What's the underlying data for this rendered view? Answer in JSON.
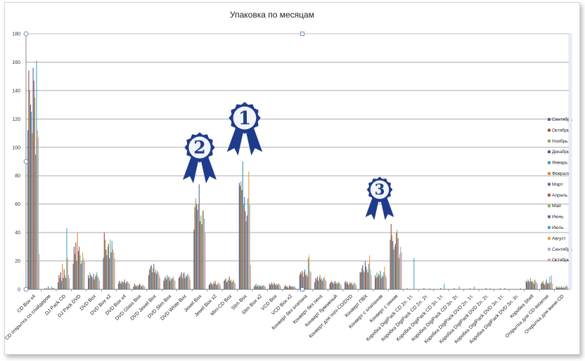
{
  "chart_data": {
    "type": "bar",
    "title": "Упаковка по месяцам",
    "xlabel": "",
    "ylabel": "",
    "ylim": [
      0,
      180
    ],
    "yticks": [
      0,
      20,
      40,
      60,
      80,
      100,
      120,
      140,
      160,
      180
    ],
    "grid": true,
    "legend_position": "right",
    "categories": [
      "CD Box x4",
      "CD открытка со спайдером",
      "DJ Pack CD",
      "DJ Pack DVD",
      "DVD Box",
      "DVD Box x2",
      "DVD Box x4",
      "DVD Glass Box",
      "DVD Jewel Box",
      "DVD Slim Box",
      "DVD White Box",
      "Jewel Box",
      "Jewel Box x2",
      "Mini-CD Box",
      "Slim Box",
      "Slim Box x2",
      "VCD Box",
      "VCD Box x2",
      "Конверт без клапана",
      "Конверт без окна",
      "Конверт бумажный",
      "Конверт для mini-CD/DVD",
      "Конверт ПВХ",
      "Конверт с клапаном",
      "Конверт с окном",
      "Коробка DigiPack CD 2л. 1т.",
      "Коробка DigiPack CD 2л. 2т.",
      "Коробка DigiPack CD 3л. 1т.",
      "Коробка DigiPack CD 3л. 3т.",
      "Коробка DigiPack DVD 2л. 1т.",
      "Коробка DigiPack DVD 2л. 2т.",
      "Коробка DigiPack DVD 3л. 1т.",
      "Коробка DigiPack DVD 3л. 3т.",
      "Коробка Shell",
      "Открытка для CD-визитки",
      "Открытка для мини-CD"
    ],
    "series": [
      {
        "name": "Сентябрь",
        "color": "#4a6a9a",
        "values": [
          112,
          0,
          5,
          18,
          10,
          22,
          4,
          2,
          10,
          6,
          8,
          42,
          3,
          6,
          75,
          2,
          4,
          2,
          10,
          5,
          4,
          5,
          12,
          10,
          35,
          0,
          0,
          0,
          0,
          0,
          0,
          0,
          0,
          6,
          4,
          2
        ]
      },
      {
        "name": "Октябрь",
        "color": "#a84a42",
        "values": [
          154,
          0,
          10,
          30,
          8,
          40,
          6,
          4,
          14,
          8,
          9,
          58,
          4,
          7,
          73,
          3,
          3,
          3,
          12,
          8,
          5,
          6,
          12,
          8,
          46,
          0,
          0,
          0,
          0,
          0,
          0,
          0,
          0,
          5,
          5,
          1
        ]
      },
      {
        "name": "Ноябрь",
        "color": "#8aa05a",
        "values": [
          140,
          1,
          8,
          25,
          12,
          35,
          5,
          3,
          16,
          9,
          10,
          64,
          5,
          8,
          76,
          4,
          5,
          2,
          11,
          7,
          6,
          4,
          15,
          12,
          38,
          1,
          0,
          0,
          0,
          0,
          0,
          0,
          0,
          7,
          6,
          2
        ]
      },
      {
        "name": "Декабрь",
        "color": "#6a5090",
        "values": [
          130,
          0,
          12,
          33,
          10,
          28,
          4,
          2,
          17,
          7,
          12,
          60,
          4,
          5,
          70,
          2,
          4,
          2,
          13,
          9,
          5,
          5,
          17,
          9,
          34,
          0,
          0,
          0,
          0,
          0,
          0,
          0,
          0,
          6,
          4,
          1
        ]
      },
      {
        "name": "Январь",
        "color": "#3f98ac",
        "values": [
          125,
          1,
          6,
          20,
          9,
          24,
          6,
          3,
          12,
          10,
          8,
          56,
          3,
          6,
          90,
          3,
          3,
          1,
          9,
          6,
          4,
          3,
          13,
          11,
          28,
          0,
          1,
          0,
          1,
          0,
          0,
          0,
          0,
          5,
          3,
          2
        ]
      },
      {
        "name": "Февраль",
        "color": "#e08a35",
        "values": [
          110,
          0,
          18,
          40,
          8,
          30,
          5,
          2,
          15,
          8,
          11,
          60,
          5,
          7,
          60,
          2,
          5,
          2,
          12,
          8,
          5,
          4,
          12,
          10,
          30,
          0,
          0,
          0,
          0,
          1,
          0,
          1,
          0,
          8,
          5,
          1
        ]
      },
      {
        "name": "Март",
        "color": "#5070a8",
        "values": [
          156,
          2,
          8,
          27,
          11,
          32,
          5,
          3,
          18,
          9,
          12,
          74,
          4,
          9,
          65,
          3,
          4,
          3,
          14,
          10,
          6,
          5,
          20,
          13,
          32,
          0,
          0,
          1,
          0,
          0,
          1,
          0,
          0,
          6,
          7,
          2
        ]
      },
      {
        "name": "Апрель",
        "color": "#b05050",
        "values": [
          147,
          0,
          14,
          30,
          7,
          22,
          7,
          4,
          12,
          6,
          8,
          48,
          6,
          6,
          55,
          2,
          3,
          2,
          10,
          7,
          4,
          4,
          16,
          8,
          40,
          0,
          0,
          0,
          0,
          0,
          0,
          0,
          0,
          5,
          4,
          1
        ]
      },
      {
        "name": "Май",
        "color": "#98b060",
        "values": [
          135,
          1,
          10,
          24,
          9,
          35,
          4,
          3,
          14,
          8,
          10,
          52,
          4,
          7,
          48,
          3,
          4,
          2,
          11,
          8,
          5,
          5,
          14,
          10,
          42,
          0,
          0,
          0,
          0,
          0,
          0,
          0,
          0,
          6,
          5,
          2
        ]
      },
      {
        "name": "Июнь",
        "color": "#7a60a0",
        "values": [
          95,
          0,
          8,
          18,
          10,
          26,
          5,
          2,
          11,
          7,
          9,
          46,
          3,
          5,
          52,
          2,
          3,
          2,
          9,
          6,
          4,
          3,
          12,
          9,
          36,
          0,
          0,
          0,
          0,
          0,
          0,
          0,
          0,
          4,
          4,
          1
        ]
      },
      {
        "name": "Июль",
        "color": "#4aa8c0",
        "values": [
          161,
          2,
          43,
          20,
          12,
          34,
          6,
          3,
          13,
          8,
          11,
          55,
          4,
          6,
          64,
          3,
          4,
          2,
          22,
          8,
          5,
          4,
          18,
          12,
          22,
          22,
          0,
          4,
          2,
          2,
          0,
          1,
          0,
          7,
          9,
          2
        ]
      },
      {
        "name": "Август",
        "color": "#f09a40",
        "values": [
          112,
          1,
          22,
          26,
          9,
          28,
          5,
          3,
          12,
          9,
          10,
          56,
          5,
          7,
          83,
          3,
          4,
          2,
          24,
          9,
          5,
          5,
          24,
          16,
          25,
          0,
          1,
          0,
          0,
          0,
          1,
          0,
          1,
          6,
          5,
          2
        ]
      },
      {
        "name": "Сентябрь",
        "color": "#9ab0d8",
        "values": [
          107,
          1,
          10,
          22,
          8,
          26,
          4,
          2,
          10,
          7,
          9,
          50,
          4,
          5,
          60,
          2,
          3,
          2,
          13,
          7,
          4,
          4,
          14,
          10,
          30,
          0,
          0,
          0,
          0,
          0,
          0,
          0,
          0,
          5,
          10,
          3
        ]
      },
      {
        "name": "Октябрь",
        "color": "#d8a098",
        "values": [
          25,
          1,
          8,
          20,
          6,
          22,
          4,
          2,
          8,
          6,
          7,
          40,
          3,
          4,
          17,
          2,
          2,
          1,
          12,
          6,
          3,
          3,
          10,
          8,
          26,
          0,
          0,
          0,
          0,
          0,
          0,
          0,
          0,
          4,
          4,
          2
        ]
      }
    ],
    "annotations": [
      "1",
      "2",
      "3"
    ]
  }
}
